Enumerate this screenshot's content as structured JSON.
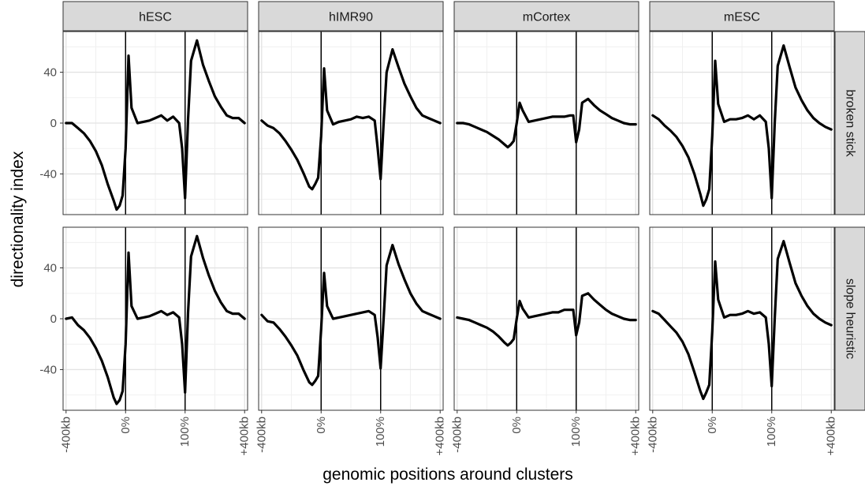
{
  "chart_data": {
    "type": "line",
    "xlabel": "genomic positions around clusters",
    "ylabel": "directionality index",
    "columns": [
      "hESC",
      "hIMR90",
      "mCortex",
      "mESC"
    ],
    "rows": [
      "broken stick",
      "slope heuristic"
    ],
    "x_tick_labels": [
      "-400kb",
      "0%",
      "100%",
      "+400kb"
    ],
    "y_ticks": [
      -40,
      0,
      40
    ],
    "ylim": [
      -72,
      72
    ],
    "x_units": "position index: -400kb = 0, 0% = 10, 100% = 20, +400kb = 30",
    "xlim": [
      -0.5,
      30.5
    ],
    "boundary_lines_at": [
      10,
      20
    ],
    "grid": true,
    "panels": [
      {
        "column": "hESC",
        "row": "broken stick",
        "x": [
          0,
          1,
          2,
          3,
          4,
          5,
          6,
          7,
          8,
          8.5,
          9,
          9.5,
          10,
          10.5,
          11,
          12,
          13,
          14,
          15,
          16,
          17,
          18,
          19,
          19.5,
          20,
          20.5,
          21,
          22,
          23,
          24,
          25,
          26,
          27,
          28,
          29,
          30
        ],
        "y": [
          0,
          0,
          -4,
          -8,
          -14,
          -22,
          -33,
          -48,
          -61,
          -68,
          -65,
          -57,
          -20,
          53,
          12,
          0,
          1,
          2,
          4,
          6,
          2,
          5,
          0,
          -20,
          -59,
          3,
          49,
          65,
          46,
          33,
          21,
          13,
          6,
          4,
          4,
          0
        ]
      },
      {
        "column": "hIMR90",
        "row": "broken stick",
        "x": [
          0,
          1,
          2,
          3,
          4,
          5,
          6,
          7,
          8,
          8.5,
          9,
          9.5,
          10,
          10.5,
          11,
          12,
          13,
          14,
          15,
          16,
          17,
          18,
          19,
          19.5,
          20,
          20.5,
          21,
          22,
          23,
          24,
          25,
          26,
          27,
          28,
          29,
          30
        ],
        "y": [
          2,
          -2,
          -4,
          -8,
          -14,
          -21,
          -29,
          -39,
          -50,
          -52,
          -48,
          -43,
          -10,
          43,
          10,
          -1,
          1,
          2,
          3,
          5,
          4,
          5,
          2,
          -20,
          -44,
          0,
          40,
          58,
          44,
          31,
          21,
          12,
          6,
          4,
          2,
          0
        ]
      },
      {
        "column": "mCortex",
        "row": "broken stick",
        "x": [
          0,
          1,
          2,
          3,
          4,
          5,
          6,
          7,
          8,
          8.5,
          9,
          9.5,
          10,
          10.5,
          11,
          12,
          13,
          14,
          15,
          16,
          17,
          18,
          19,
          19.5,
          20,
          20.5,
          21,
          22,
          23,
          24,
          25,
          26,
          27,
          28,
          29,
          30
        ],
        "y": [
          0,
          0,
          -1,
          -3,
          -5,
          -7,
          -10,
          -13,
          -17,
          -19,
          -17,
          -14,
          0,
          16,
          10,
          1,
          2,
          3,
          4,
          5,
          5,
          5,
          6,
          6,
          -15,
          -5,
          16,
          19,
          14,
          10,
          7,
          4,
          2,
          0,
          -1,
          -1
        ]
      },
      {
        "column": "mESC",
        "row": "broken stick",
        "x": [
          0,
          1,
          2,
          3,
          4,
          5,
          6,
          7,
          8,
          8.5,
          9,
          9.5,
          10,
          10.5,
          11,
          12,
          13,
          14,
          15,
          16,
          17,
          18,
          19,
          19.5,
          20,
          20.5,
          21,
          22,
          23,
          24,
          25,
          26,
          27,
          28,
          29,
          30
        ],
        "y": [
          6,
          3,
          -2,
          -6,
          -11,
          -18,
          -27,
          -40,
          -56,
          -65,
          -60,
          -52,
          -10,
          49,
          15,
          1,
          3,
          3,
          4,
          6,
          3,
          6,
          1,
          -20,
          -59,
          0,
          45,
          61,
          44,
          28,
          18,
          10,
          4,
          0,
          -3,
          -5
        ]
      },
      {
        "column": "hESC",
        "row": "slope heuristic",
        "x": [
          0,
          1,
          2,
          3,
          4,
          5,
          6,
          7,
          8,
          8.5,
          9,
          9.5,
          10,
          10.5,
          11,
          12,
          13,
          14,
          15,
          16,
          17,
          18,
          19,
          19.5,
          20,
          20.5,
          21,
          22,
          23,
          24,
          25,
          26,
          27,
          28,
          29,
          30
        ],
        "y": [
          0,
          1,
          -5,
          -9,
          -15,
          -23,
          -33,
          -46,
          -62,
          -67,
          -64,
          -57,
          -20,
          52,
          10,
          0,
          1,
          2,
          4,
          6,
          3,
          5,
          1,
          -20,
          -58,
          5,
          49,
          65,
          48,
          34,
          22,
          13,
          6,
          4,
          4,
          0
        ]
      },
      {
        "column": "hIMR90",
        "row": "slope heuristic",
        "x": [
          0,
          1,
          2,
          3,
          4,
          5,
          6,
          7,
          8,
          8.5,
          9,
          9.5,
          10,
          10.5,
          11,
          12,
          13,
          14,
          15,
          16,
          17,
          18,
          19,
          19.5,
          20,
          20.5,
          21,
          22,
          23,
          24,
          25,
          26,
          27,
          28,
          29,
          30
        ],
        "y": [
          3,
          -2,
          -3,
          -8,
          -14,
          -21,
          -29,
          -40,
          -50,
          -52,
          -49,
          -45,
          -8,
          36,
          10,
          0,
          1,
          2,
          3,
          4,
          5,
          6,
          3,
          -15,
          -39,
          0,
          42,
          58,
          43,
          31,
          20,
          12,
          6,
          4,
          2,
          0
        ]
      },
      {
        "column": "mCortex",
        "row": "slope heuristic",
        "x": [
          0,
          1,
          2,
          3,
          4,
          5,
          6,
          7,
          8,
          8.5,
          9,
          9.5,
          10,
          10.5,
          11,
          12,
          13,
          14,
          15,
          16,
          17,
          18,
          19,
          19.5,
          20,
          20.5,
          21,
          22,
          23,
          24,
          25,
          26,
          27,
          28,
          29,
          30
        ],
        "y": [
          1,
          0,
          -1,
          -3,
          -5,
          -7,
          -10,
          -14,
          -19,
          -21,
          -19,
          -16,
          0,
          14,
          8,
          1,
          2,
          3,
          4,
          5,
          5,
          7,
          7,
          7,
          -13,
          -3,
          18,
          20,
          15,
          11,
          7,
          4,
          2,
          0,
          -1,
          -1
        ]
      },
      {
        "column": "mESC",
        "row": "slope heuristic",
        "x": [
          0,
          1,
          2,
          3,
          4,
          5,
          6,
          7,
          8,
          8.5,
          9,
          9.5,
          10,
          10.5,
          11,
          12,
          13,
          14,
          15,
          16,
          17,
          18,
          19,
          19.5,
          20,
          20.5,
          21,
          22,
          23,
          24,
          25,
          26,
          27,
          28,
          29,
          30
        ],
        "y": [
          6,
          4,
          -1,
          -6,
          -11,
          -18,
          -28,
          -42,
          -57,
          -63,
          -58,
          -52,
          -10,
          45,
          15,
          1,
          3,
          3,
          4,
          6,
          4,
          5,
          1,
          -20,
          -53,
          0,
          47,
          61,
          44,
          28,
          18,
          10,
          4,
          0,
          -3,
          -5
        ]
      }
    ]
  }
}
